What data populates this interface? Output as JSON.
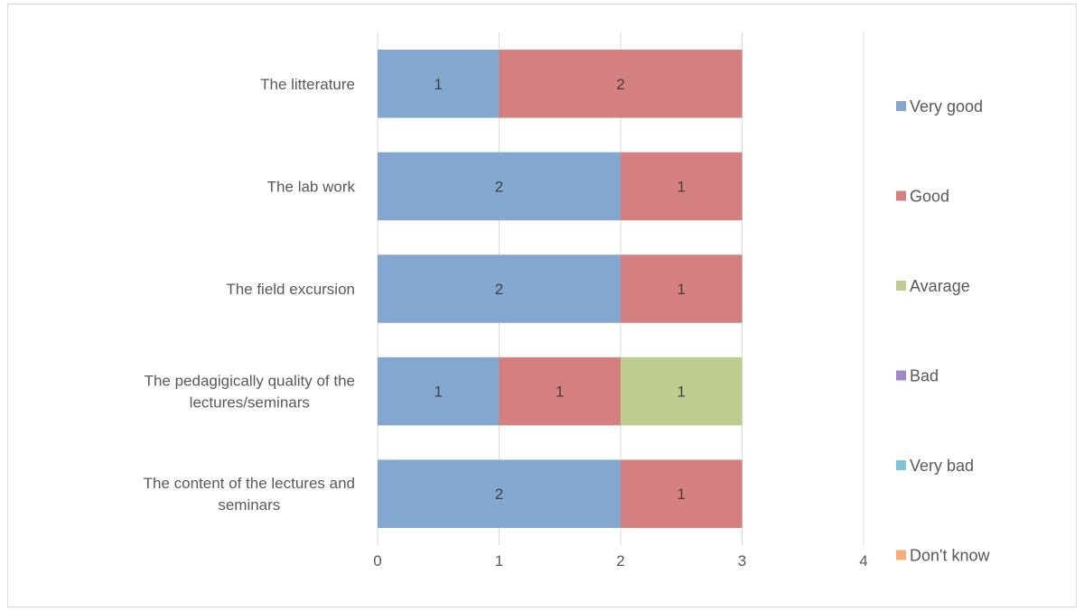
{
  "chart_data": {
    "type": "bar",
    "orientation": "horizontal",
    "stacked": true,
    "categories": [
      "The litterature",
      "The lab work",
      "The field excursion",
      "The pedagigically quality of the lectures/seminars",
      "The content of the lectures and seminars"
    ],
    "category_lines": [
      [
        "The litterature"
      ],
      [
        "The lab work"
      ],
      [
        "The field excursion"
      ],
      [
        "The pedagigically quality of the",
        "lectures/seminars"
      ],
      [
        "The content of the lectures and",
        "seminars"
      ]
    ],
    "series": [
      {
        "name": "Very good",
        "color": "#84a7cf",
        "values": [
          1,
          2,
          2,
          1,
          2
        ]
      },
      {
        "name": "Good",
        "color": "#d48080",
        "values": [
          2,
          1,
          1,
          1,
          1
        ]
      },
      {
        "name": "Avarage",
        "color": "#bccd8f",
        "values": [
          0,
          0,
          0,
          1,
          0
        ]
      },
      {
        "name": "Bad",
        "color": "#a08ac4",
        "values": [
          0,
          0,
          0,
          0,
          0
        ]
      },
      {
        "name": "Very bad",
        "color": "#7ec4d4",
        "values": [
          0,
          0,
          0,
          0,
          0
        ]
      },
      {
        "name": "Don't know",
        "color": "#f6ad7a",
        "values": [
          0,
          0,
          0,
          0,
          0
        ]
      }
    ],
    "xlim": [
      0,
      4
    ],
    "x_ticks": [
      "0",
      "1",
      "2",
      "3",
      "4"
    ],
    "grid": true,
    "data_labels": true,
    "legend_position": "right",
    "title": "",
    "xlabel": "",
    "ylabel": ""
  }
}
